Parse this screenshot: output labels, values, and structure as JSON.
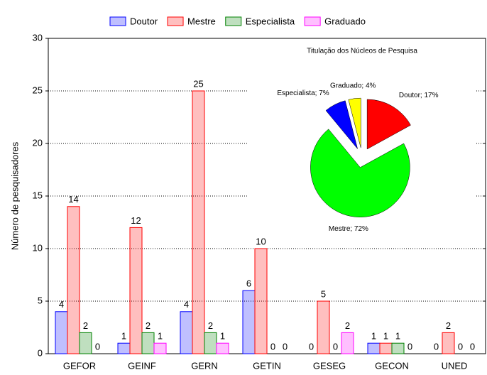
{
  "chart_data": [
    {
      "type": "bar",
      "categories": [
        "GEFOR",
        "GEINF",
        "GERN",
        "GETIN",
        "GESEG",
        "GECON",
        "UNED"
      ],
      "series": [
        {
          "name": "Doutor",
          "color": "#0000ff",
          "values": [
            4,
            1,
            4,
            6,
            0,
            1,
            0
          ]
        },
        {
          "name": "Mestre",
          "color": "#ff0000",
          "values": [
            14,
            12,
            25,
            10,
            5,
            1,
            2
          ]
        },
        {
          "name": "Especialista",
          "color": "#008000",
          "values": [
            2,
            2,
            2,
            0,
            0,
            1,
            0
          ]
        },
        {
          "name": "Graduado",
          "color": "#ff00ff",
          "values": [
            0,
            1,
            1,
            0,
            2,
            0,
            0
          ]
        }
      ],
      "y_label": "Número de pesquisadores",
      "ylim": [
        0,
        30
      ],
      "yticks": [
        0,
        5,
        10,
        15,
        20,
        25,
        30
      ],
      "grid": true,
      "legend": "top"
    },
    {
      "type": "pie",
      "title": "Titulação dos Núcleos de Pesquisa",
      "categories": [
        "Doutor",
        "Mestre",
        "Especialista",
        "Graduado"
      ],
      "values": [
        17,
        72,
        7,
        4
      ],
      "value_labels": [
        "Doutor; 17%",
        "Mestre; 72%",
        "Especialista; 7%",
        "Graduado; 4%"
      ],
      "colors": [
        "#ff0000",
        "#00ff00",
        "#0000ff",
        "#ffff00"
      ]
    }
  ]
}
